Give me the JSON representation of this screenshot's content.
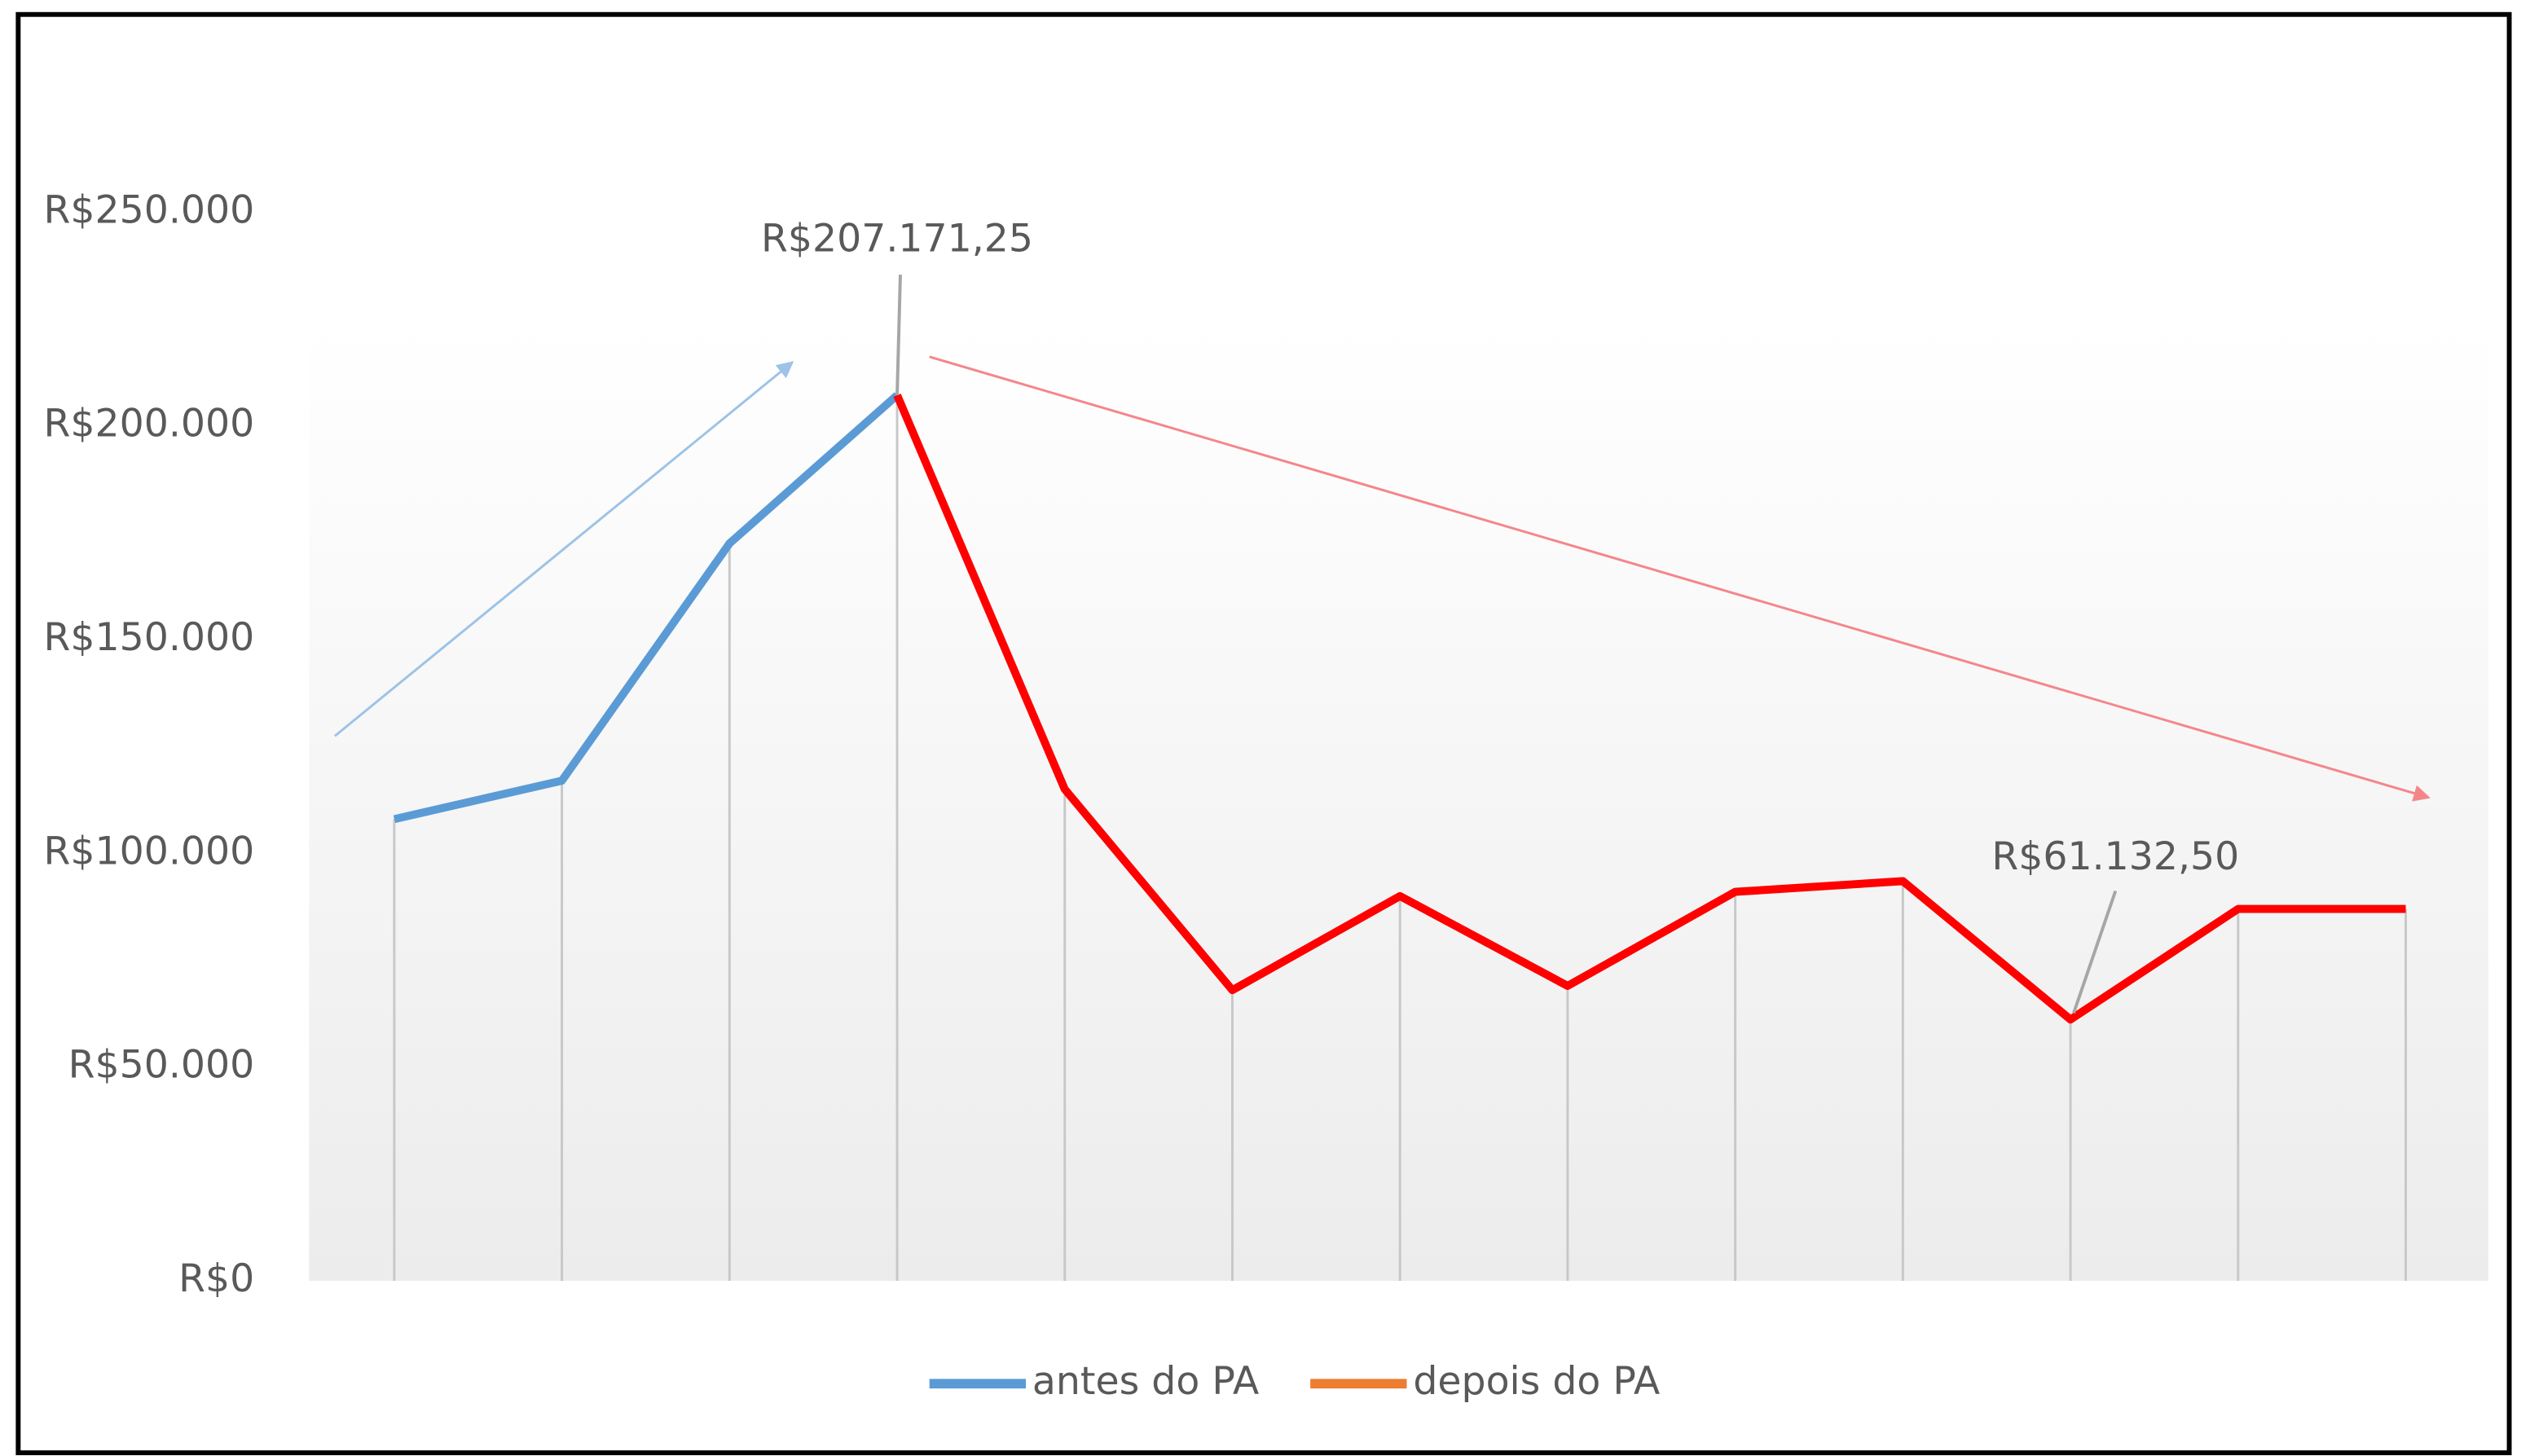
{
  "chart_data": {
    "type": "line",
    "categories": [
      null,
      null,
      null,
      null,
      null,
      null,
      null,
      null,
      null,
      null,
      null,
      null,
      null
    ],
    "series": [
      {
        "name": "antes do PA",
        "color": "#5b9bd5",
        "values": [
          108000,
          117000,
          172500,
          207171.25,
          null,
          null,
          null,
          null,
          null,
          null,
          null,
          null,
          null
        ],
        "value_labels": [
          null,
          null,
          null,
          "R$207.171,25",
          null,
          null,
          null,
          null,
          null,
          null,
          null,
          null,
          null
        ]
      },
      {
        "name": "depois do PA",
        "color": "#ed7d31",
        "line_color": "#ff0000",
        "values": [
          null,
          null,
          null,
          207171.25,
          115000,
          68000,
          90000,
          69000,
          91000,
          93500,
          61132.5,
          87000,
          87000
        ],
        "value_labels": [
          null,
          null,
          null,
          null,
          null,
          null,
          null,
          null,
          null,
          null,
          "R$61.132,50",
          null,
          null
        ]
      }
    ],
    "ylim": [
      0,
      250000
    ],
    "yticks": [
      {
        "value": 0,
        "label": "R$0"
      },
      {
        "value": 50000,
        "label": "R$50.000"
      },
      {
        "value": 100000,
        "label": "R$100.000"
      },
      {
        "value": 150000,
        "label": "R$150.000"
      },
      {
        "value": 200000,
        "label": "R$200.000"
      },
      {
        "value": 250000,
        "label": "R$250.000"
      }
    ],
    "drop_lines": true,
    "legend": "bottom"
  }
}
